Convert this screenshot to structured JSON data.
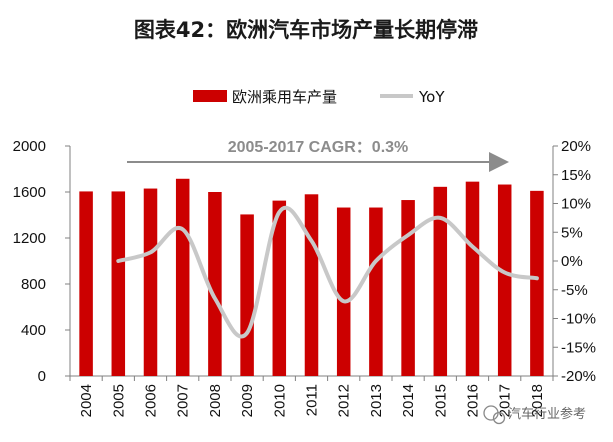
{
  "title": "图表42：欧洲汽车市场产量长期停滞",
  "legend": {
    "bar_label": "欧洲乘用车产量",
    "line_label": "YoY"
  },
  "annotation": {
    "text": "2005-2017 CAGR：0.3%"
  },
  "watermark": "汽车行业参考",
  "colors": {
    "bar": "#cc0000",
    "line": "#c8c8c8",
    "arrow": "#8c8c8c",
    "axis": "#808080"
  },
  "chart_data": {
    "type": "bar",
    "title": "图表42：欧洲汽车市场产量长期停滞",
    "categories": [
      "2004",
      "2005",
      "2006",
      "2007",
      "2008",
      "2009",
      "2010",
      "2011",
      "2012",
      "2013",
      "2014",
      "2015",
      "2016",
      "2017",
      "2018"
    ],
    "series": [
      {
        "name": "欧洲乘用车产量",
        "type": "bar",
        "axis": "left",
        "values": [
          1605,
          1605,
          1630,
          1715,
          1600,
          1405,
          1525,
          1580,
          1465,
          1465,
          1530,
          1645,
          1690,
          1665,
          1610
        ]
      },
      {
        "name": "YoY",
        "type": "line",
        "axis": "right",
        "values": [
          null,
          0.0,
          1.5,
          5.5,
          -6.5,
          -12.5,
          8.5,
          3.5,
          -7.0,
          0.0,
          4.5,
          7.5,
          2.5,
          -2.0,
          -3.0
        ]
      }
    ],
    "y_left": {
      "ylim": [
        0,
        2000
      ],
      "ticks": [
        "0",
        "400",
        "800",
        "1200",
        "1600",
        "2000"
      ]
    },
    "y_right": {
      "ylim": [
        -20,
        20
      ],
      "ticks": [
        "-20%",
        "-15%",
        "-10%",
        "-5%",
        "0%",
        "5%",
        "10%",
        "15%",
        "20%"
      ]
    },
    "legend_position": "top-center",
    "grid": false
  }
}
